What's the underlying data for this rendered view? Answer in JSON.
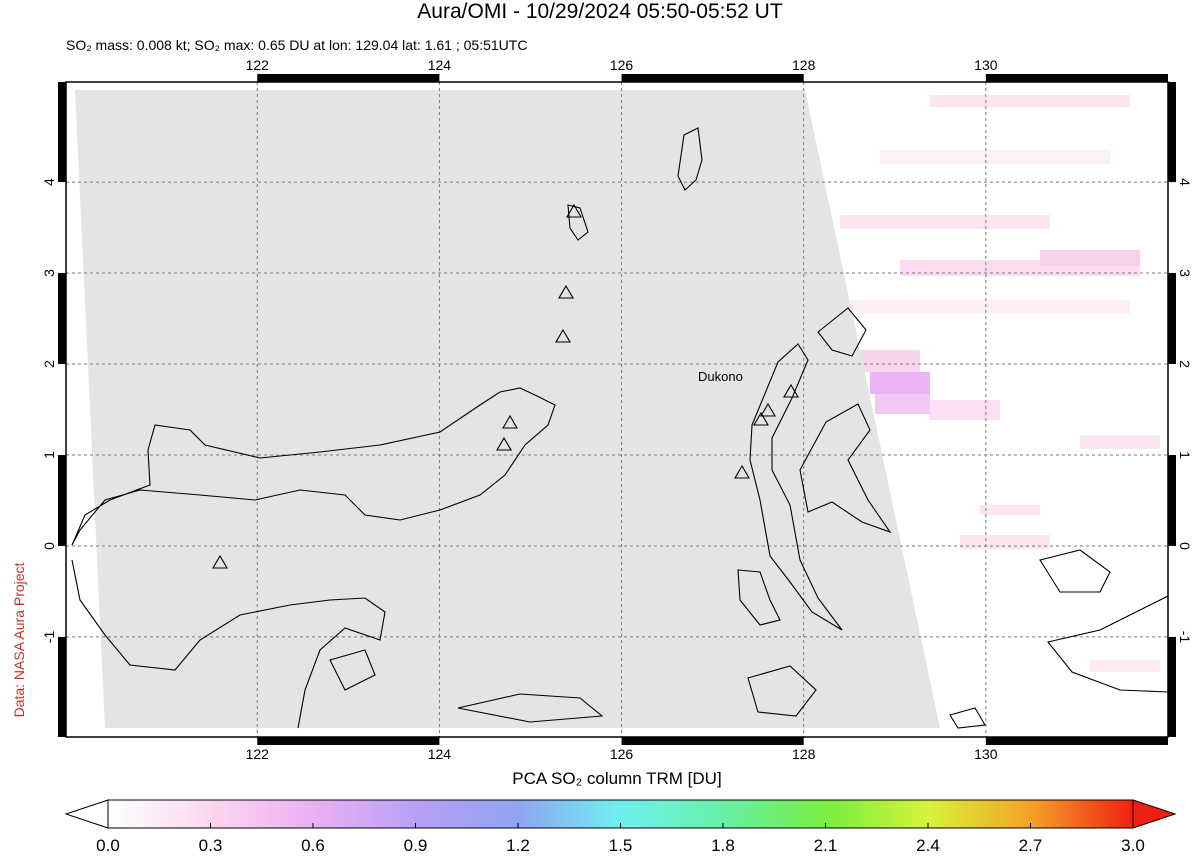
{
  "map": {
    "title": "Aura/OMI - 10/29/2024 05:50-05:52 UT",
    "subtitle": "SO₂ mass: 0.008 kt; SO₂ max: 0.65 DU at lon: 129.04 lat: 1.61 ; 05:51UTC",
    "xlim": [
      119.9,
      132.0
    ],
    "ylim": [
      -2.1,
      5.1
    ],
    "xticks": [
      122,
      124,
      126,
      128,
      130
    ],
    "yticks": [
      -1,
      0,
      1,
      2,
      3,
      4
    ],
    "grid": true,
    "volcano_label": "Dukono",
    "credit": "Data: NASA Aura Project",
    "colorbar": {
      "label": "PCA SO₂ column TRM [DU]",
      "clim": [
        0,
        3
      ],
      "ticks": [
        {
          "value": 0,
          "label": "0.0"
        },
        0.3,
        0.6,
        0.9,
        1.2,
        1.5,
        1.8,
        2.1,
        2.4,
        2.7,
        {
          "value": 3,
          "label": "3.0"
        }
      ]
    }
  }
}
